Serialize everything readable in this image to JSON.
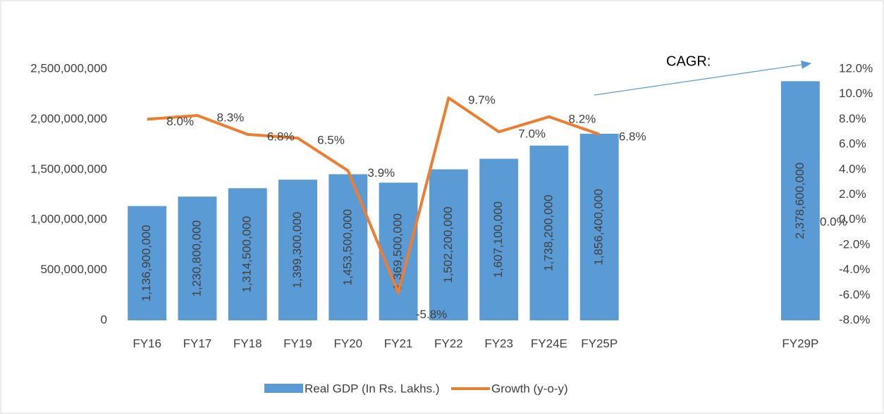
{
  "chart_data": {
    "type": "bar_line",
    "annotation": "CAGR:",
    "categories": [
      "FY16",
      "FY17",
      "FY18",
      "FY19",
      "FY20",
      "FY21",
      "FY22",
      "FY23",
      "FY24E",
      "FY25P",
      null,
      null,
      null,
      "FY29P"
    ],
    "series": [
      {
        "name": "Real GDP (In Rs. Lakhs.)",
        "type": "bar",
        "color": "#5b9bd5",
        "values": [
          1136900000,
          1230800000,
          1314500000,
          1399300000,
          1453500000,
          1369500000,
          1502200000,
          1607100000,
          1738200000,
          1856400000,
          null,
          null,
          null,
          2378600000
        ],
        "value_labels": [
          "1,136,900,000",
          "1,230,800,000",
          "1,314,500,000",
          "1,399,300,000",
          "1,453,500,000",
          "1,369,500,000",
          "1,502,200,000",
          "1,607,100,000",
          "1,738,200,000",
          "1,856,400,000",
          null,
          null,
          null,
          "2,378,600,000"
        ]
      },
      {
        "name": "Growth (y-o-y)",
        "type": "line",
        "axis": "y2",
        "color": "#ed7d31",
        "values": [
          8.0,
          8.3,
          6.8,
          6.5,
          3.9,
          -5.8,
          9.7,
          7.0,
          8.2,
          6.8,
          null,
          null,
          null,
          0.0
        ],
        "value_labels": [
          "8.0%",
          "8.3%",
          "6.8%",
          "6.5%",
          "3.9%",
          "-5.8%",
          "9.7%",
          "7.0%",
          "8.2%",
          "6.8%",
          null,
          null,
          null,
          "0.0%"
        ]
      }
    ],
    "ylim": [
      0,
      2500000000
    ],
    "yticks": [
      0,
      {
        "value": 500000000,
        "label": "500,000,000"
      },
      {
        "value": 1000000000,
        "label": "1,000,000,000"
      },
      {
        "value": 1500000000,
        "label": "1,500,000,000"
      },
      {
        "value": 2000000000,
        "label": "2,000,000,000"
      },
      {
        "value": 2500000000,
        "label": "2,500,000,000"
      }
    ],
    "y2lim": [
      -8,
      12
    ],
    "y2ticks": [
      {
        "value": -8,
        "label": "-8.0%"
      },
      {
        "value": -6,
        "label": "-6.0%"
      },
      {
        "value": -4,
        "label": "-4.0%"
      },
      {
        "value": -2,
        "label": "-2.0%"
      },
      {
        "value": 0,
        "label": "0.0%"
      },
      {
        "value": 2,
        "label": "2.0%"
      },
      {
        "value": 4,
        "label": "4.0%"
      },
      {
        "value": 6,
        "label": "6.0%"
      },
      {
        "value": 8,
        "label": "8.0%"
      },
      {
        "value": 10,
        "label": "10.0%"
      },
      {
        "value": 12,
        "label": "12.0%"
      }
    ],
    "legend": "bottom"
  }
}
